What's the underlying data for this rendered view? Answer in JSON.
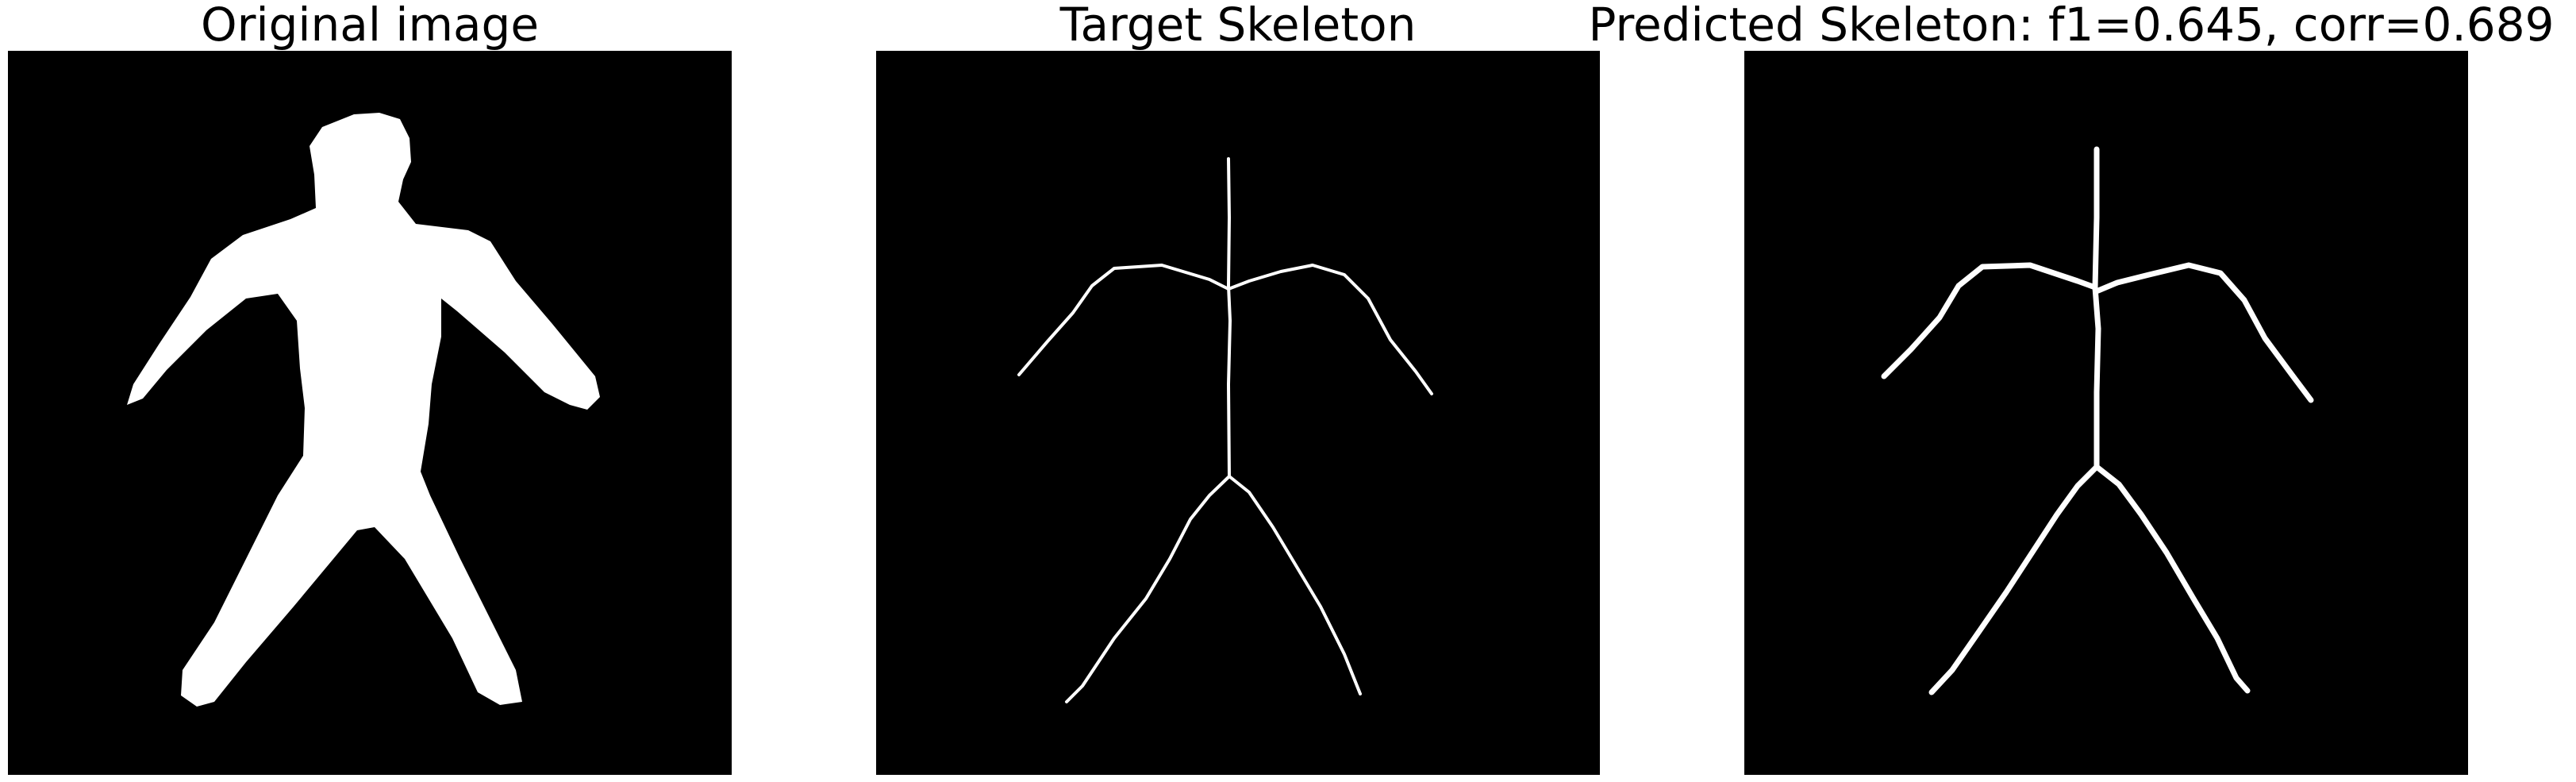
{
  "figure": {
    "panels": [
      {
        "title": "Original image"
      },
      {
        "title": "Target Skeleton"
      },
      {
        "title": "Predicted Skeleton: f1=0.645, corr=0.689"
      }
    ],
    "colors": {
      "background": "#000000",
      "foreground": "#ffffff",
      "page": "#ffffff"
    }
  }
}
